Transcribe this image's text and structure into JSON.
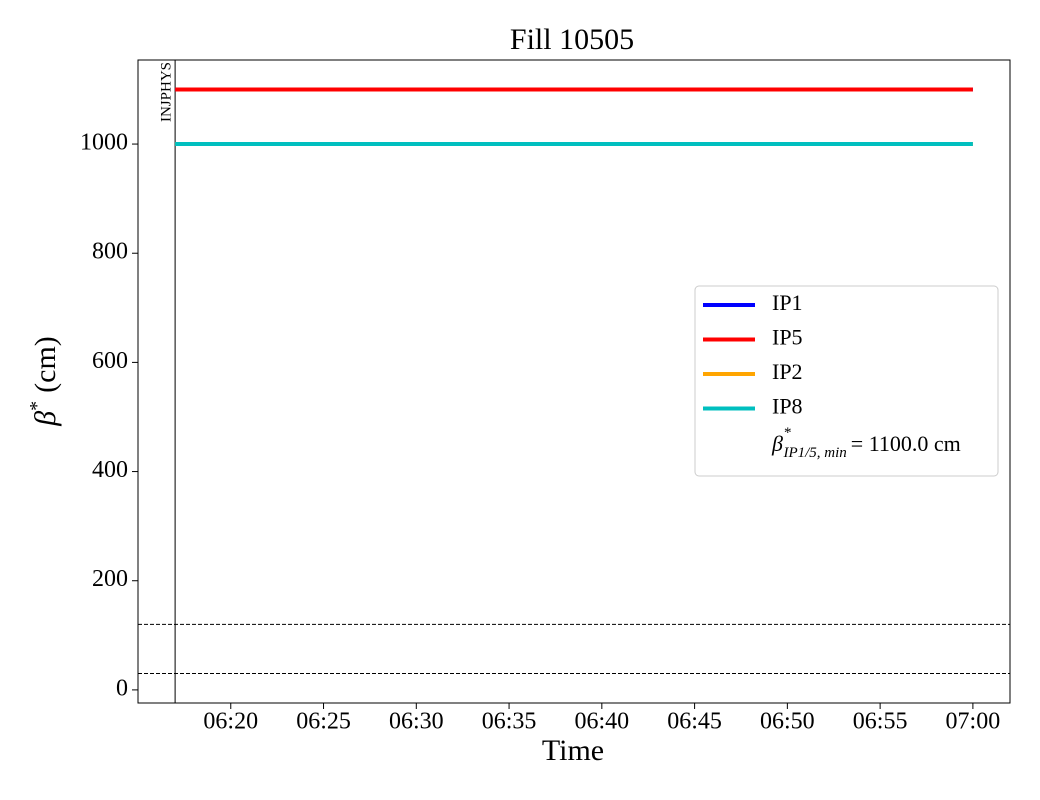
{
  "chart_data": {
    "type": "line",
    "title": "Fill 10505",
    "xlabel": "Time",
    "ylabel": {
      "symbol": "β",
      "sup": "*",
      "text": "(cm)"
    },
    "x": [
      "06:17",
      "07:00"
    ],
    "series": [
      {
        "name": "IP1",
        "color": "#0000ff",
        "values": [
          1100,
          1100
        ]
      },
      {
        "name": "IP5",
        "color": "#ff0000",
        "values": [
          1100,
          1100
        ]
      },
      {
        "name": "IP2",
        "color": "#ffa500",
        "values": [
          1000,
          1000
        ]
      },
      {
        "name": "IP8",
        "color": "#00bfbf",
        "values": [
          1000,
          1000
        ]
      }
    ],
    "legend_note": {
      "symbol": "β",
      "sup": "*",
      "sub": "IP1/5, min",
      "text": "= 1100.0 cm"
    },
    "legend": "center right",
    "vlines": [
      {
        "x": "06:17",
        "label": "INJPHYS"
      }
    ],
    "hlines": [
      120,
      30
    ],
    "xlim": [
      "06:15",
      "07:02"
    ],
    "xticks": [
      "06:20",
      "06:25",
      "06:30",
      "06:35",
      "06:40",
      "06:45",
      "06:50",
      "06:55",
      "07:00"
    ],
    "ylim": [
      -24,
      1154
    ],
    "yticks": [
      0,
      200,
      400,
      600,
      800,
      1000
    ],
    "grid": false
  }
}
